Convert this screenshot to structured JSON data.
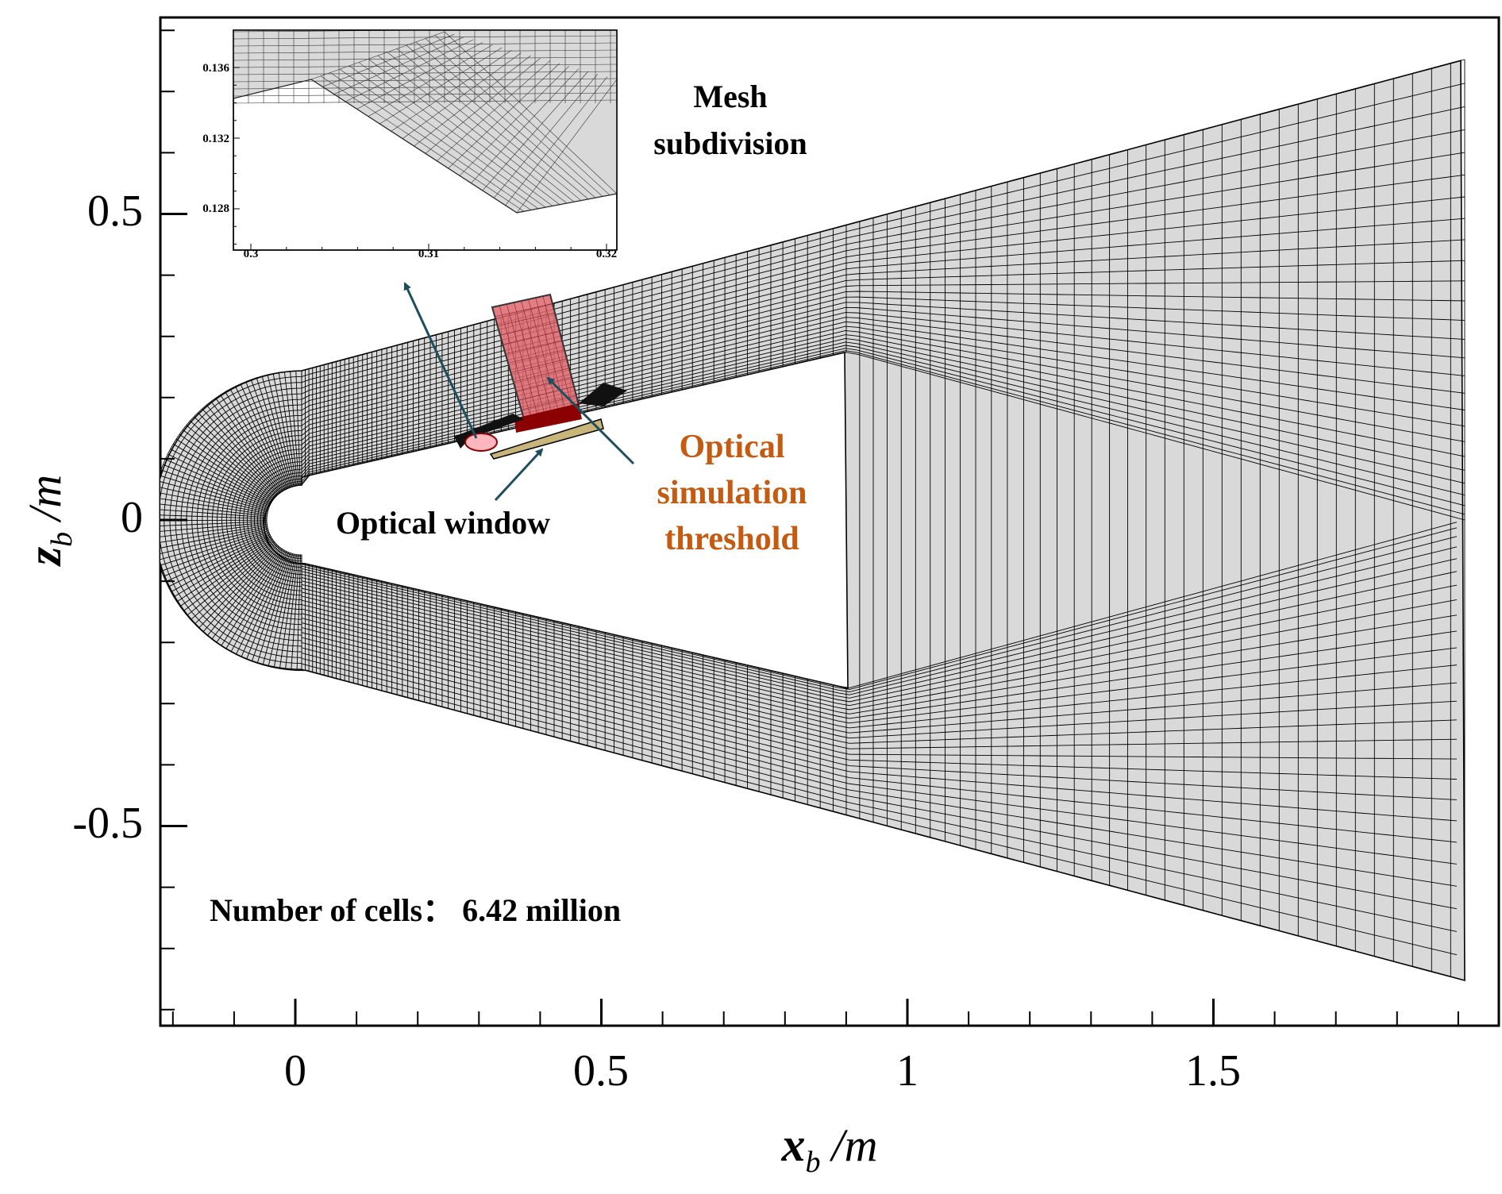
{
  "chart_data": {
    "type": "mesh-diagram",
    "xlabel": {
      "var": "x",
      "sub": "b",
      "unit": "/m"
    },
    "ylabel": {
      "var": "z",
      "sub": "b",
      "unit": "/m"
    },
    "xlim": [
      -0.22,
      1.92
    ],
    "ylim": [
      -0.83,
      0.83
    ],
    "x_ticks": [
      0,
      0.5,
      1,
      1.5
    ],
    "x_tick_labels": [
      "0",
      "0.5",
      "1",
      "1.5"
    ],
    "y_ticks": [
      0.5,
      0,
      -0.5
    ],
    "y_tick_labels": [
      "0.5",
      "0",
      "-0.5"
    ],
    "inset": {
      "title": "Mesh subdivision",
      "x_tick_labels": [
        "0.3",
        "0.31",
        "0.32"
      ],
      "y_tick_labels": [
        "0.136",
        "0.132",
        "0.128"
      ]
    }
  },
  "annotations": {
    "mesh_title_line1": "Mesh",
    "mesh_title_line2": "subdivision",
    "optical_window": "Optical window",
    "threshold_line1": "Optical",
    "threshold_line2": "simulation",
    "threshold_line3": "threshold",
    "cells_label": "Number of cells： 6.42 million"
  },
  "colors": {
    "mesh_fill": "#d9d9d9",
    "mesh_line": "#000000",
    "threshold_fill": "#e0666e",
    "threshold_dark": "#8b0000",
    "window_fill": "#c8b57a",
    "arrow": "#1f4e5f",
    "threshold_text": "#c55a11"
  }
}
